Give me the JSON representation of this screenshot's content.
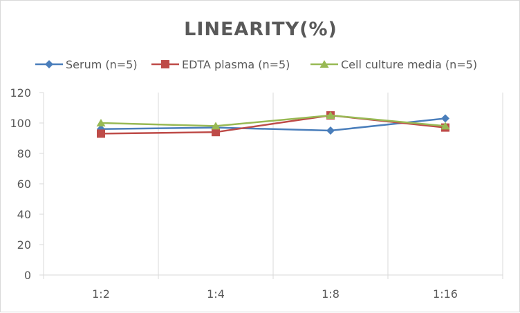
{
  "chart_data": {
    "type": "line",
    "title": "LINEARITY(%)",
    "categories": [
      "1:2",
      "1:4",
      "1:8",
      "1:16"
    ],
    "ylim": [
      0,
      120
    ],
    "yticks": [
      0,
      20,
      40,
      60,
      80,
      100,
      120
    ],
    "grid": "vertical",
    "legend_position": "top",
    "series": [
      {
        "name": "Serum (n=5)",
        "values": [
          96,
          97,
          95,
          103
        ],
        "color": "#4a7ebb",
        "marker": "diamond"
      },
      {
        "name": "EDTA plasma (n=5)",
        "values": [
          93,
          94,
          105,
          97
        ],
        "color": "#be4b48",
        "marker": "square"
      },
      {
        "name": "Cell culture media (n=5)",
        "values": [
          100,
          98,
          105,
          98
        ],
        "color": "#98b954",
        "marker": "triangle"
      }
    ]
  }
}
